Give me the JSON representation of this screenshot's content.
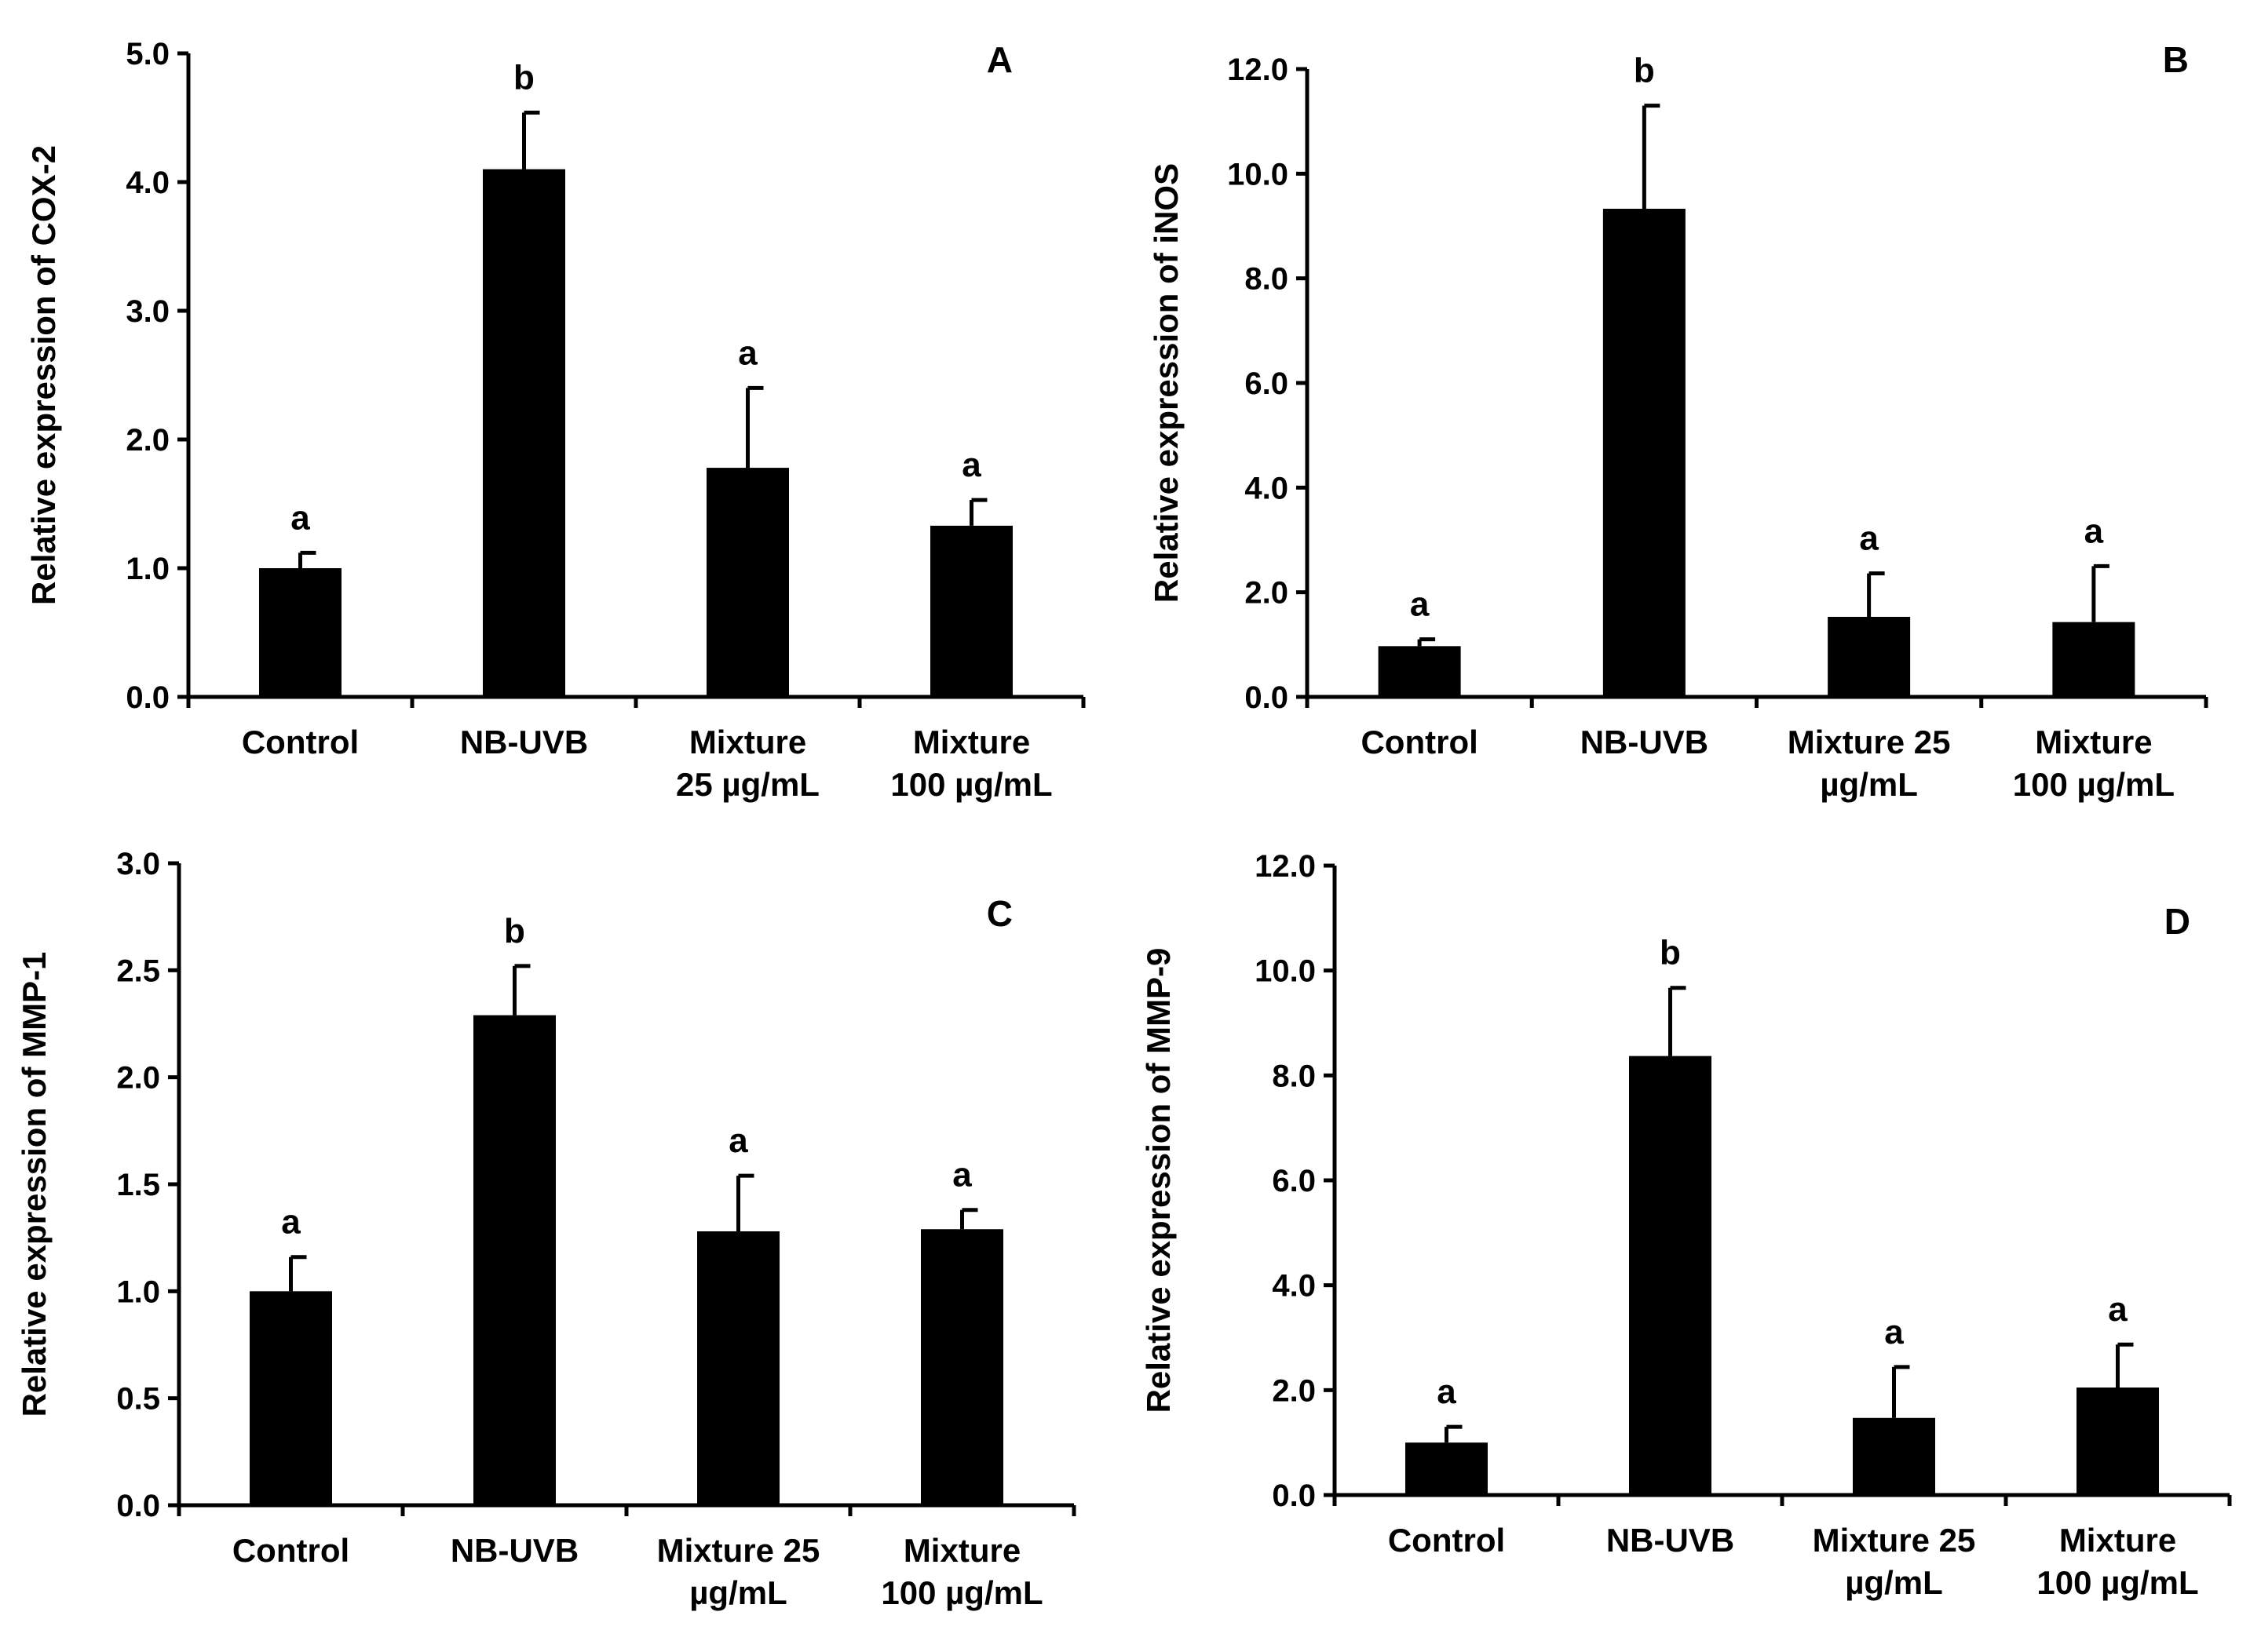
{
  "chart_data": [
    {
      "type": "bar",
      "panel": "A",
      "ylabel": "Relative expression of COX-2",
      "ylim": [
        0,
        5
      ],
      "yticks": [
        "0.0",
        "1.0",
        "2.0",
        "3.0",
        "4.0",
        "5.0"
      ],
      "categories": [
        [
          "Control"
        ],
        [
          "NB-UVB"
        ],
        [
          "Mixture",
          "25 µg/mL"
        ],
        [
          "Mixture",
          "100 µg/mL"
        ]
      ],
      "values": [
        1.0,
        4.1,
        1.78,
        1.33
      ],
      "errors": [
        0.12,
        0.44,
        0.62,
        0.2
      ],
      "letters": [
        "a",
        "b",
        "a",
        "a"
      ]
    },
    {
      "type": "bar",
      "panel": "B",
      "ylabel": "Relative expression of iNOS",
      "ylim": [
        0,
        12
      ],
      "yticks": [
        "0.0",
        "2.0",
        "4.0",
        "6.0",
        "8.0",
        "10.0",
        "12.0"
      ],
      "categories": [
        [
          "Control"
        ],
        [
          "NB-UVB"
        ],
        [
          "Mixture 25",
          "µg/mL"
        ],
        [
          "Mixture",
          "100 µg/mL"
        ]
      ],
      "values": [
        0.97,
        9.33,
        1.53,
        1.43
      ],
      "errors": [
        0.13,
        1.97,
        0.83,
        1.07
      ],
      "letters": [
        "a",
        "b",
        "a",
        "a"
      ]
    },
    {
      "type": "bar",
      "panel": "C",
      "ylabel": "Relative expression of MMP-1",
      "ylim": [
        0,
        3
      ],
      "yticks": [
        "0.0",
        "0.5",
        "1.0",
        "1.5",
        "2.0",
        "2.5",
        "3.0"
      ],
      "categories": [
        [
          "Control"
        ],
        [
          "NB-UVB"
        ],
        [
          "Mixture 25",
          "µg/mL"
        ],
        [
          "Mixture",
          "100 µg/mL"
        ]
      ],
      "values": [
        1.0,
        2.29,
        1.28,
        1.29
      ],
      "errors": [
        0.16,
        0.23,
        0.26,
        0.09
      ],
      "letters": [
        "a",
        "b",
        "a",
        "a"
      ]
    },
    {
      "type": "bar",
      "panel": "D",
      "ylabel": "Relative expression of MMP-9",
      "ylim": [
        0,
        12
      ],
      "yticks": [
        "0.0",
        "2.0",
        "4.0",
        "6.0",
        "8.0",
        "10.0",
        "12.0"
      ],
      "categories": [
        [
          "Control"
        ],
        [
          "NB-UVB"
        ],
        [
          "Mixture 25",
          "µg/mL"
        ],
        [
          "Mixture",
          "100 µg/mL"
        ]
      ],
      "values": [
        1.0,
        8.37,
        1.47,
        2.05
      ],
      "errors": [
        0.3,
        1.3,
        0.97,
        0.82
      ],
      "letters": [
        "a",
        "b",
        "a",
        "a"
      ]
    }
  ]
}
